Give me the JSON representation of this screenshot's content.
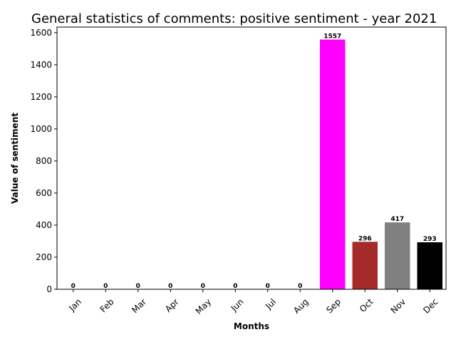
{
  "chart_data": {
    "type": "bar",
    "title": "General statistics of comments: positive sentiment - year 2021",
    "xlabel": "Months",
    "ylabel": "Value of sentiment",
    "categories": [
      "Jan",
      "Feb",
      "Mar",
      "Apr",
      "May",
      "Jun",
      "Jul",
      "Aug",
      "Sep",
      "Oct",
      "Nov",
      "Dec"
    ],
    "values": [
      0,
      0,
      0,
      0,
      0,
      0,
      0,
      0,
      1557,
      296,
      417,
      293
    ],
    "bar_colors": [
      "#1f77b4",
      "#1f77b4",
      "#1f77b4",
      "#1f77b4",
      "#1f77b4",
      "#1f77b4",
      "#1f77b4",
      "#1f77b4",
      "#ff00ff",
      "#a52a2a",
      "#808080",
      "#000000"
    ],
    "yticks": [
      0,
      200,
      400,
      600,
      800,
      1000,
      1200,
      1400,
      1600
    ],
    "ylim": [
      0,
      1634.85
    ],
    "grid": false,
    "data_labels": true,
    "xtick_rotation_deg": 45
  }
}
